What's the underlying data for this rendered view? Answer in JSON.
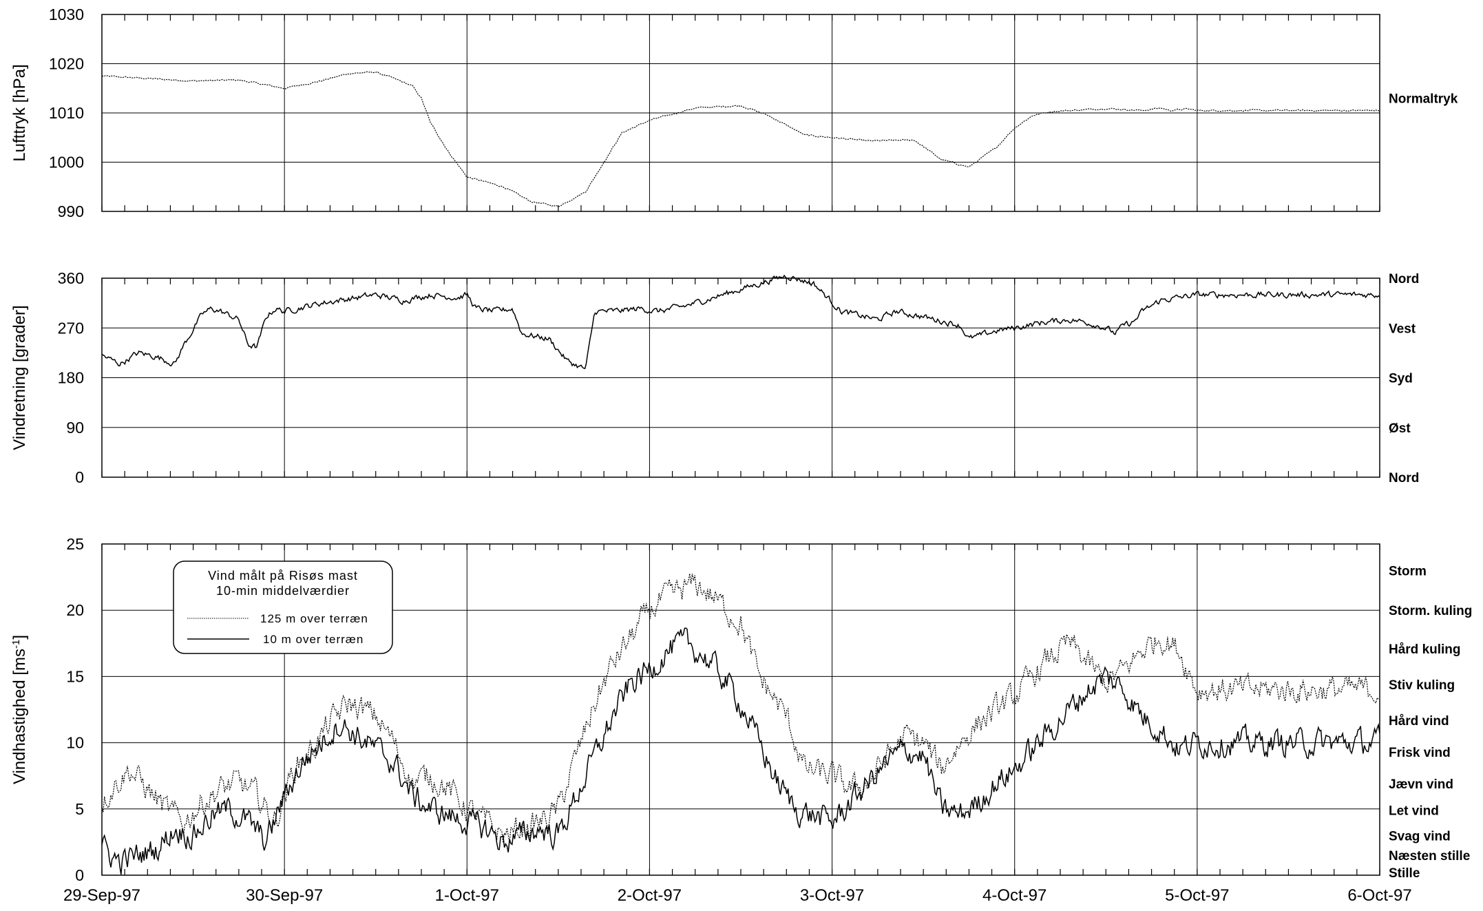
{
  "x_axis": {
    "tick_labels": [
      "29-Sep-97",
      "30-Sep-97",
      "1-Oct-97",
      "2-Oct-97",
      "3-Oct-97",
      "4-Oct-97",
      "5-Oct-97",
      "6-Oct-97"
    ]
  },
  "chart_data": [
    {
      "type": "line",
      "ylabel": "Lufttryk [hPa]",
      "ylim": [
        990,
        1030
      ],
      "yticks": [
        990,
        1000,
        1010,
        1020,
        1030
      ],
      "grid": true,
      "right_labels": [
        {
          "text": "Normaltryk",
          "value": 1013
        }
      ],
      "series": [
        {
          "style": "dotted",
          "x": [
            0,
            0.25,
            0.5,
            0.75,
            1.0,
            1.2,
            1.35,
            1.5,
            1.6,
            1.7,
            1.75,
            1.8,
            1.9,
            2.0,
            2.2,
            2.35,
            2.5,
            2.65,
            2.75,
            2.85,
            3.0,
            3.25,
            3.5,
            3.65,
            3.85,
            4.0,
            4.2,
            4.45,
            4.6,
            4.75,
            4.9,
            5.0,
            5.1,
            5.2,
            5.35,
            5.5,
            5.7,
            5.8,
            5.85,
            5.95,
            6.0
          ],
          "y": [
            1017.5,
            1017,
            1016.5,
            1016.7,
            1015,
            1016.5,
            1018,
            1018.3,
            1017,
            1015.5,
            1013,
            1008,
            1002,
            997,
            995,
            992,
            991,
            994,
            1000,
            1006,
            1008.5,
            1011,
            1011.5,
            1009.5,
            1005.5,
            1005,
            1004.3,
            1004.5,
            1000.5,
            999,
            1003,
            1007,
            1009.5,
            1010.3,
            1010.6,
            1010.9,
            1010.5,
            1011,
            1010.5,
            1010.8,
            1010.5
          ]
        }
      ]
    },
    {
      "type": "line",
      "ylabel": "Vindretning [grader]",
      "ylim": [
        0,
        360
      ],
      "yticks": [
        0,
        90,
        180,
        270,
        360
      ],
      "grid": true,
      "right_labels": [
        {
          "text": "Nord",
          "value": 360
        },
        {
          "text": "Vest",
          "value": 270
        },
        {
          "text": "Syd",
          "value": 180
        },
        {
          "text": "Øst",
          "value": 90
        },
        {
          "text": "Nord",
          "value": 0
        }
      ],
      "series": [
        {
          "style": "solid",
          "x": [
            0,
            0.1,
            0.2,
            0.3,
            0.4,
            0.45,
            0.55,
            0.6,
            0.65,
            0.75,
            0.8,
            0.85,
            0.9,
            0.95,
            1.0,
            1.2,
            1.4,
            1.5,
            1.65,
            1.8,
            1.95,
            2.0,
            2.05,
            2.15,
            2.25,
            2.3,
            2.45,
            2.55,
            2.65,
            2.7,
            2.8,
            2.95,
            3.05,
            3.2,
            3.4,
            3.55,
            3.75,
            3.9,
            4.05,
            4.25,
            4.35,
            4.5,
            4.7,
            4.75,
            4.9,
            5.0,
            5.15,
            5.3,
            5.4,
            5.5,
            5.55,
            5.6,
            5.65,
            5.7,
            5.8,
            5.9,
            6.0
          ],
          "y": [
            220,
            205,
            225,
            218,
            205,
            240,
            295,
            305,
            300,
            285,
            240,
            235,
            290,
            305,
            300,
            315,
            325,
            330,
            320,
            330,
            325,
            330,
            305,
            300,
            305,
            260,
            250,
            210,
            195,
            300,
            300,
            305,
            300,
            310,
            330,
            345,
            365,
            350,
            300,
            285,
            300,
            290,
            275,
            250,
            265,
            270,
            280,
            285,
            280,
            270,
            260,
            275,
            280,
            300,
            320,
            325,
            330
          ]
        }
      ]
    },
    {
      "type": "line",
      "ylabel": "Vindhastighed [ms-1]",
      "ylim": [
        0,
        25
      ],
      "yticks": [
        0,
        5,
        10,
        15,
        20,
        25
      ],
      "grid": true,
      "legend": {
        "position": "top-left",
        "title_lines": [
          "Vind målt på Risøs mast",
          "10-min middelværdier"
        ]
      },
      "right_labels": [
        {
          "text": "Storm",
          "value": 23
        },
        {
          "text": "Storm. kuling",
          "value": 20
        },
        {
          "text": "Hård kuling",
          "value": 17.1
        },
        {
          "text": "Stiv kuling",
          "value": 14.4
        },
        {
          "text": "Hård vind",
          "value": 11.7
        },
        {
          "text": "Frisk vind",
          "value": 9.3
        },
        {
          "text": "Jævn vind",
          "value": 6.9
        },
        {
          "text": "Let vind",
          "value": 4.9
        },
        {
          "text": "Svag vind",
          "value": 3.0
        },
        {
          "text": "Næsten stille",
          "value": 1.5
        },
        {
          "text": "Stille",
          "value": 0.2
        }
      ],
      "series": [
        {
          "name": "125 m over terræn",
          "style": "dotted",
          "x": [
            0,
            0.08,
            0.15,
            0.25,
            0.35,
            0.45,
            0.55,
            0.65,
            0.75,
            0.85,
            0.95,
            1.05,
            1.15,
            1.25,
            1.35,
            1.5,
            1.6,
            1.7,
            1.8,
            1.9,
            2.0,
            2.1,
            2.2,
            2.3,
            2.4,
            2.5,
            2.6,
            2.7,
            2.8,
            2.9,
            3.0,
            3.1,
            3.25,
            3.35,
            3.5,
            3.6,
            3.75,
            3.85,
            4.0,
            4.1,
            4.2,
            4.3,
            4.4,
            4.5,
            4.6,
            4.7,
            4.8,
            4.9,
            5.0,
            5.1,
            5.2,
            5.3,
            5.4,
            5.5,
            5.6,
            5.7,
            5.8,
            5.9,
            6.0
          ],
          "y": [
            5.5,
            7.0,
            8.0,
            6.5,
            5.0,
            4.0,
            5.5,
            6.5,
            7.0,
            6.0,
            4.0,
            8.0,
            9.5,
            11.5,
            13.0,
            12.0,
            10.0,
            7.0,
            7.5,
            6.5,
            5.0,
            4.0,
            3.0,
            3.5,
            4.0,
            5.0,
            9.0,
            13.0,
            16.0,
            18.0,
            20.0,
            21.0,
            22.0,
            21.0,
            19.0,
            15.0,
            12.0,
            8.0,
            7.5,
            6.5,
            7.0,
            9.0,
            10.5,
            10.0,
            8.0,
            10.0,
            11.5,
            12.5,
            13.5,
            15.0,
            16.5,
            17.5,
            16.0,
            14.5,
            15.5,
            17.0,
            18.0,
            17.0,
            14.0
          ]
        },
        {
          "name": "10 m over terræn",
          "style": "solid",
          "x": [
            0,
            0.1,
            0.2,
            0.3,
            0.4,
            0.5,
            0.6,
            0.7,
            0.8,
            0.9,
            1.0,
            1.1,
            1.2,
            1.3,
            1.4,
            1.5,
            1.6,
            1.7,
            1.8,
            1.9,
            2.0,
            2.1,
            2.2,
            2.3,
            2.4,
            2.5,
            2.6,
            2.7,
            2.8,
            2.9,
            3.0,
            3.1,
            3.2,
            3.3,
            3.4,
            3.5,
            3.6,
            3.7,
            3.8,
            3.9,
            4.0,
            4.1,
            4.2,
            4.3,
            4.4,
            4.5,
            4.6,
            4.7,
            4.8,
            4.9,
            5.0,
            5.1,
            5.2,
            5.3,
            5.4,
            5.5,
            5.6,
            5.7,
            5.8,
            5.9,
            6.0
          ],
          "y": [
            2.0,
            1.0,
            1.5,
            2.0,
            3.5,
            3.0,
            4.5,
            5.0,
            4.0,
            2.5,
            6.0,
            8.5,
            10.0,
            11.5,
            10.5,
            9.5,
            8.5,
            6.0,
            5.0,
            4.5,
            4.0,
            3.5,
            2.5,
            3.0,
            3.5,
            3.0,
            6.0,
            9.0,
            12.0,
            14.5,
            15.5,
            17.0,
            17.5,
            16.5,
            15.0,
            13.0,
            10.0,
            7.0,
            5.0,
            4.5,
            4.0,
            5.5,
            7.0,
            8.5,
            9.5,
            9.0,
            5.0,
            4.5,
            5.5,
            7.0,
            8.0,
            9.5,
            11.0,
            12.5,
            14.0,
            15.0,
            14.0,
            12.0,
            11.0,
            9.5,
            10.0
          ]
        }
      ]
    }
  ]
}
